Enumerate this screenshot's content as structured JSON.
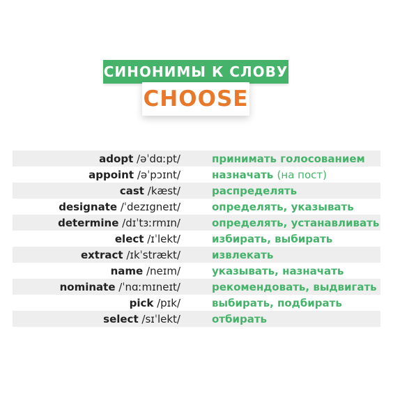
{
  "header": {
    "subtitle": "СИНОНИМЫ К СЛОВУ",
    "word": "CHOOSE"
  },
  "colors": {
    "green": "#45b36a",
    "orange": "#e8792a",
    "stripe": "#eeeeee"
  },
  "rows": [
    {
      "word": "adopt",
      "ipa": "/əˈdɑːpt/",
      "translation": "принимать голосованием",
      "note": ""
    },
    {
      "word": "appoint",
      "ipa": "/əˈpɔɪnt/",
      "translation": "назначать",
      "note": "(на пост)"
    },
    {
      "word": "cast",
      "ipa": "/kæst/",
      "translation": "распределять",
      "note": ""
    },
    {
      "word": "designate",
      "ipa": "/ˈdezɪgneɪt/",
      "translation": "определять, указывать",
      "note": ""
    },
    {
      "word": "determine",
      "ipa": "/dɪˈtɜːrmɪn/",
      "translation": "определять, устанавливать",
      "note": ""
    },
    {
      "word": "elect",
      "ipa": "/ɪˈlekt/",
      "translation": "избирать, выбирать",
      "note": ""
    },
    {
      "word": "extract",
      "ipa": "/ɪkˈstrækt/",
      "translation": "извлекать",
      "note": ""
    },
    {
      "word": "name",
      "ipa": "/neɪm/",
      "translation": "указывать, назначать",
      "note": ""
    },
    {
      "word": "nominate",
      "ipa": "/ˈnɑːmɪneɪt/",
      "translation": "рекомендовать, выдвигать",
      "note": ""
    },
    {
      "word": "pick",
      "ipa": "/pɪk/",
      "translation": "выбирать, подбирать",
      "note": ""
    },
    {
      "word": "select",
      "ipa": "/sɪˈlekt/",
      "translation": "отбирать",
      "note": ""
    }
  ]
}
